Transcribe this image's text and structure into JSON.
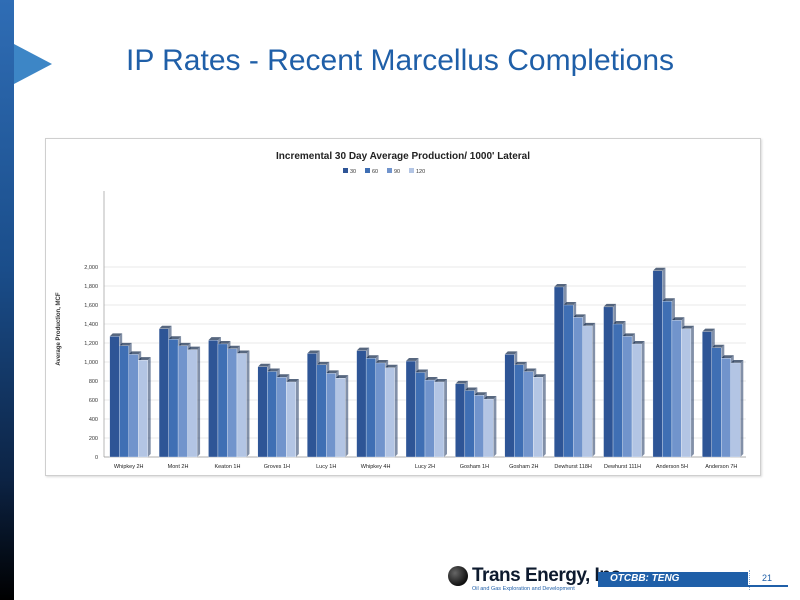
{
  "slide": {
    "title": "IP Rates - Recent Marcellus Completions",
    "page_number": "21",
    "ticker": "OTCBB: TENG",
    "company": "Trans Energy, Inc.",
    "tagline": "Oil and Gas Exploration and Development"
  },
  "colors": {
    "title": "#1f5fa8",
    "series": [
      "#2e5596",
      "#3f6fb4",
      "#7194cc",
      "#b3c5e4"
    ]
  },
  "chart_data": {
    "type": "bar",
    "title": "Incremental 30 Day Average Production/ 1000' Lateral",
    "ylabel": "Average Production, MCF",
    "xlabel": "",
    "ylim": [
      0,
      2800
    ],
    "yticks": [
      0,
      200,
      400,
      600,
      800,
      1000,
      1200,
      1400,
      1600,
      1800,
      2000
    ],
    "ytick_labels": [
      "0",
      "200",
      "400",
      "600",
      "800",
      "1,000",
      "1,200",
      "1,400",
      "1,600",
      "1,800",
      "2,000"
    ],
    "grid": true,
    "legend_position": "top",
    "categories": [
      "Whipkey 2H",
      "Mont 2H",
      "Keaton 1H",
      "Groves 1H",
      "Lucy 1H",
      "Whipkey 4H",
      "Lucy 2H",
      "Gosham 1H",
      "Gosham 2H",
      "Dewhurst 118H",
      "Dewhurst 111H",
      "Anderson 5H",
      "Anderson 7H"
    ],
    "series": [
      {
        "name": "30",
        "values": [
          1270,
          1350,
          1230,
          950,
          1090,
          1120,
          1010,
          770,
          1080,
          1790,
          1580,
          1960,
          1320
        ]
      },
      {
        "name": "60",
        "values": [
          1170,
          1240,
          1190,
          900,
          970,
          1040,
          890,
          700,
          970,
          1600,
          1400,
          1640,
          1150
        ]
      },
      {
        "name": "90",
        "values": [
          1080,
          1170,
          1140,
          840,
          880,
          990,
          810,
          650,
          900,
          1470,
          1270,
          1440,
          1040
        ]
      },
      {
        "name": "120",
        "values": [
          1020,
          1130,
          1090,
          790,
          830,
          940,
          790,
          610,
          840,
          1380,
          1190,
          1350,
          990
        ]
      }
    ]
  }
}
